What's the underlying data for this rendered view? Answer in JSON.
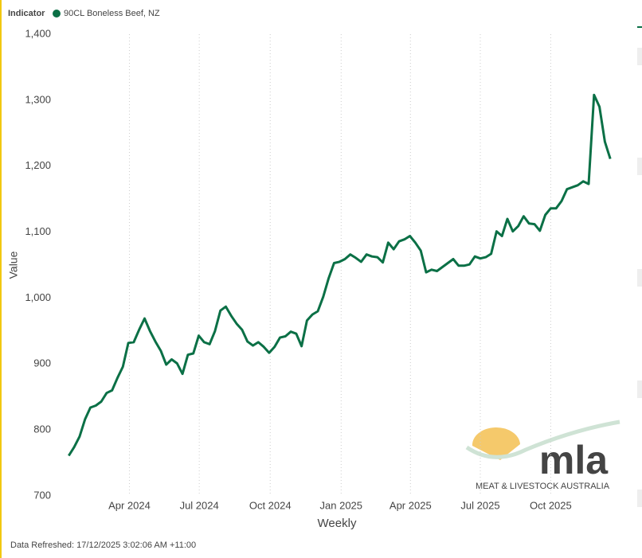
{
  "chart_data": {
    "type": "line",
    "legend_title": "Indicator",
    "x_label": "Weekly",
    "y_label": "Value",
    "xlim": [
      -2.4,
      101.3
    ],
    "xticks": [
      {
        "value": 11.2,
        "label": "Apr 2024"
      },
      {
        "value": 24.1,
        "label": "Jul 2024"
      },
      {
        "value": 37.2,
        "label": "Oct 2024"
      },
      {
        "value": 50.3,
        "label": "Jan 2025"
      },
      {
        "value": 63.1,
        "label": "Apr 2025"
      },
      {
        "value": 76,
        "label": "Jul 2025"
      },
      {
        "value": 89,
        "label": "Oct 2025"
      }
    ],
    "ylim": [
      700,
      1400
    ],
    "yticks": [
      700,
      800,
      900,
      {
        "value": 1000,
        "label": "1,000"
      },
      {
        "value": 1100,
        "label": "1,100"
      },
      {
        "value": 1200,
        "label": "1,200"
      },
      {
        "value": 1300,
        "label": "1,300"
      },
      {
        "value": 1400,
        "label": "1,400"
      }
    ],
    "xgrid": true,
    "ygrid": false,
    "series": [
      {
        "name": "90CL Boneless Beef, NZ",
        "color": "#0b7046",
        "values": [
          761,
          774,
          790,
          816,
          834,
          837,
          843,
          856,
          860,
          879,
          896,
          932,
          933,
          952,
          969,
          950,
          934,
          920,
          899,
          907,
          901,
          885,
          914,
          916,
          943,
          933,
          930,
          950,
          981,
          987,
          973,
          961,
          952,
          934,
          928,
          933,
          926,
          917,
          926,
          940,
          942,
          949,
          946,
          927,
          966,
          975,
          980,
          1002,
          1030,
          1053,
          1055,
          1059,
          1066,
          1061,
          1055,
          1066,
          1063,
          1062,
          1054,
          1084,
          1074,
          1086,
          1089,
          1094,
          1084,
          1072,
          1039,
          1043,
          1041,
          1047,
          1053,
          1059,
          1049,
          1049,
          1051,
          1063,
          1060,
          1062,
          1067,
          1101,
          1094,
          1120,
          1101,
          1109,
          1124,
          1113,
          1112,
          1102,
          1126,
          1136,
          1136,
          1147,
          1165,
          1168,
          1171,
          1177,
          1173,
          1308,
          1290,
          1237,
          1211
        ]
      }
    ]
  },
  "watermark": {
    "logo": "mla",
    "tagline": "MEAT & LIVESTOCK AUSTRALIA"
  },
  "footer": "Data Refreshed: 17/12/2025 3:02:06 AM +11:00"
}
